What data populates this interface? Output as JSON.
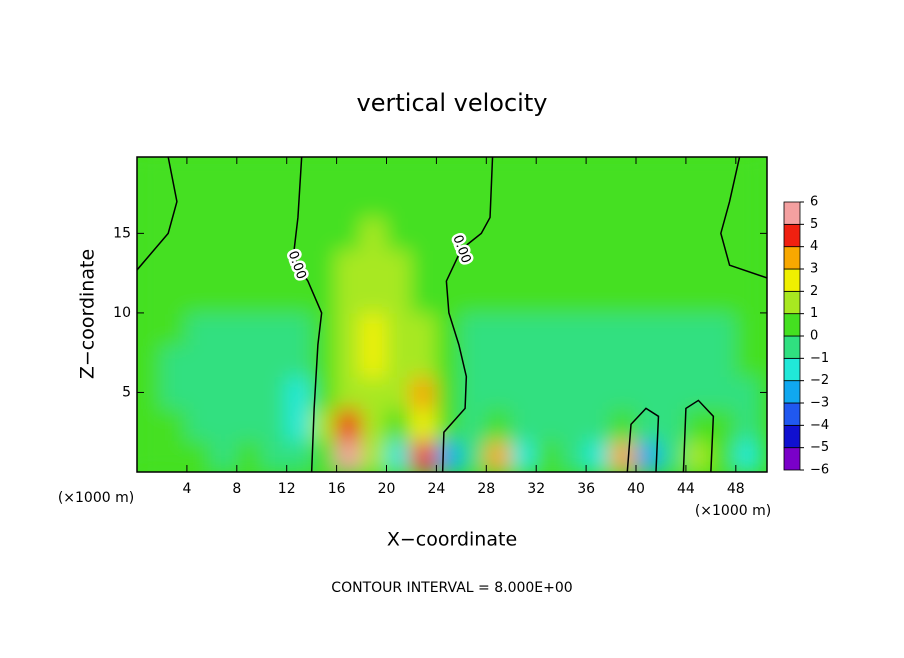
{
  "chart_data": {
    "type": "contour",
    "title": "vertical velocity",
    "x_label": "X−coordinate",
    "y_label": "Z−coordinate",
    "x_unit_label": "(×1000 m)",
    "x_unit_label_right": "(×1000 m)",
    "footnote": "CONTOUR INTERVAL = 8.000E+00",
    "xlim": [
      0,
      50.5
    ],
    "ylim": [
      0,
      19.8
    ],
    "xticks": [
      4,
      8,
      12,
      16,
      20,
      24,
      28,
      32,
      36,
      40,
      44,
      48
    ],
    "yticks": [
      5,
      10,
      15
    ],
    "field": {
      "x": [
        1,
        3,
        5,
        7,
        9,
        11,
        13,
        15,
        17,
        19,
        21,
        23,
        25,
        27,
        29,
        31,
        33,
        35,
        37,
        39,
        41,
        43,
        45,
        47,
        49
      ],
      "z": [
        1,
        3,
        5,
        7,
        9,
        11,
        13,
        15,
        17,
        19
      ],
      "values": [
        [
          0.3,
          0.8,
          0.3,
          -0.5,
          0.5,
          -0.3,
          -1,
          0.3,
          5,
          1.5,
          -1.2,
          4,
          -2.5,
          -0.8,
          3.5,
          -1.5,
          0.8,
          -1,
          -2,
          3,
          -2.5,
          -1,
          1,
          0.5,
          -1.5
        ],
        [
          0,
          0.3,
          -0.3,
          -0.5,
          -0.6,
          -0.8,
          -1.2,
          1,
          4,
          1.2,
          0.8,
          2.5,
          0.3,
          -0.3,
          0.5,
          -0.3,
          -0.4,
          -0.5,
          -0.5,
          0.8,
          -0.3,
          -0.2,
          0.8,
          0,
          -0.3
        ],
        [
          0.2,
          -0.2,
          -0.5,
          -0.6,
          -0.8,
          -1,
          -1.5,
          0.8,
          1.8,
          1.5,
          1.8,
          3,
          0.8,
          -0.2,
          -0.3,
          -0.4,
          -0.4,
          -0.5,
          -0.4,
          -0.3,
          -0.4,
          -0.3,
          -0.2,
          -0.3,
          -0.2
        ],
        [
          0.3,
          -0.3,
          -0.5,
          -0.6,
          -0.7,
          -0.7,
          -0.8,
          0.8,
          1.5,
          2.5,
          1.8,
          1.5,
          0.5,
          -0.3,
          -0.3,
          -0.3,
          -0.3,
          -0.3,
          -0.3,
          -0.3,
          -0.3,
          -0.3,
          -0.3,
          -0.3,
          0
        ],
        [
          0.3,
          0,
          -0.3,
          -0.4,
          -0.3,
          -0.3,
          -0.3,
          0.8,
          1.5,
          2.8,
          1.5,
          1,
          0.3,
          -0.2,
          -0.2,
          -0.2,
          -0.2,
          -0.2,
          -0.2,
          -0.2,
          -0.2,
          -0.2,
          -0.2,
          -0.2,
          0.2
        ],
        [
          0.4,
          0.4,
          0.4,
          0.4,
          0.3,
          0.3,
          0.2,
          0.6,
          1.2,
          1.5,
          1.2,
          0.8,
          0.3,
          0.3,
          0.3,
          0.3,
          0.3,
          0.3,
          0.3,
          0.3,
          0.3,
          0.3,
          0.3,
          0.3,
          0.3
        ],
        [
          0.5,
          0.5,
          0.5,
          0.5,
          0.5,
          0.5,
          0.5,
          0.6,
          1,
          1.2,
          1,
          0.8,
          0.5,
          0.5,
          0.5,
          0.5,
          0.5,
          0.5,
          0.5,
          0.5,
          0.5,
          0.5,
          0.5,
          0.5,
          0.5
        ],
        [
          0.4,
          0.4,
          0.4,
          0.4,
          0.4,
          0.4,
          0.4,
          0.4,
          0.8,
          1,
          0.9,
          0.4,
          0.4,
          0.4,
          0.4,
          0.4,
          0.4,
          0.4,
          0.4,
          0.4,
          0.4,
          0.4,
          0.4,
          0.4,
          0.4
        ],
        [
          0.4,
          0.4,
          0.4,
          0.4,
          0.4,
          0.4,
          0.4,
          0.4,
          0.4,
          0.7,
          0.6,
          0.4,
          0.4,
          0.4,
          0.4,
          0.4,
          0.4,
          0.4,
          0.4,
          0.4,
          0.4,
          0.4,
          0.4,
          0.4,
          0.4
        ],
        [
          0.4,
          0.4,
          0.4,
          0.4,
          0.4,
          0.4,
          0.4,
          0.4,
          0.5,
          0.5,
          0.5,
          0.4,
          0.4,
          0.4,
          0.4,
          0.4,
          0.4,
          0.4,
          0.4,
          0.4,
          0.4,
          0.4,
          0.4,
          0.4,
          0.4
        ]
      ]
    },
    "contours": [
      {
        "label": "0.00",
        "x": [
          13.2,
          12.9,
          12.6,
          12.8,
          13.7,
          14.8,
          14.5,
          14.2,
          14
        ],
        "z": [
          19.8,
          16,
          14,
          13,
          12,
          10,
          8,
          4,
          0
        ]
      },
      {
        "label": "0.00",
        "x": [
          28.5,
          28.3,
          27.6,
          26,
          24.8,
          25,
          25.8,
          26.4,
          26.3,
          24.6,
          24.5
        ],
        "z": [
          19.8,
          16,
          15,
          14,
          12,
          10,
          8,
          6,
          4,
          2.5,
          0
        ]
      },
      {
        "x": [
          0,
          2.5,
          3.2,
          2.5
        ],
        "z": [
          12.7,
          15,
          17,
          19.8
        ]
      },
      {
        "x": [
          48.3,
          47.5,
          46.8,
          47.5,
          50.5
        ],
        "z": [
          19.8,
          17,
          15,
          13,
          12.2
        ]
      },
      {
        "x": [
          39.3,
          39.6,
          40.8,
          41.8,
          41.6
        ],
        "z": [
          0,
          3,
          4,
          3.5,
          0
        ]
      },
      {
        "x": [
          43.8,
          44,
          45,
          46.2,
          46
        ],
        "z": [
          0,
          4,
          4.5,
          3.5,
          0
        ]
      }
    ],
    "levels": [
      -6,
      -5,
      -4,
      -3,
      -2,
      -1,
      0,
      1,
      2,
      3,
      4,
      5,
      6
    ],
    "level_colors": [
      "#7a00c8",
      "#1010d0",
      "#2058f0",
      "#10a8f0",
      "#20e8d8",
      "#30e080",
      "#44e020",
      "#a8e820",
      "#f0f000",
      "#f8a800",
      "#f02010",
      "#f4a0a0"
    ],
    "colorbar_ticks": [
      {
        "value": 6,
        "label": "6"
      },
      {
        "value": 5,
        "label": "5"
      },
      {
        "value": 4,
        "label": "4"
      },
      {
        "value": 3,
        "label": "3"
      },
      {
        "value": 2,
        "label": "2"
      },
      {
        "value": 1,
        "label": "1"
      },
      {
        "value": 0,
        "label": "0"
      },
      {
        "value": -1,
        "label": "−1"
      },
      {
        "value": -2,
        "label": "−2"
      },
      {
        "value": -3,
        "label": "−3"
      },
      {
        "value": -4,
        "label": "−4"
      },
      {
        "value": -5,
        "label": "−5"
      },
      {
        "value": -6,
        "label": "−6"
      }
    ]
  }
}
